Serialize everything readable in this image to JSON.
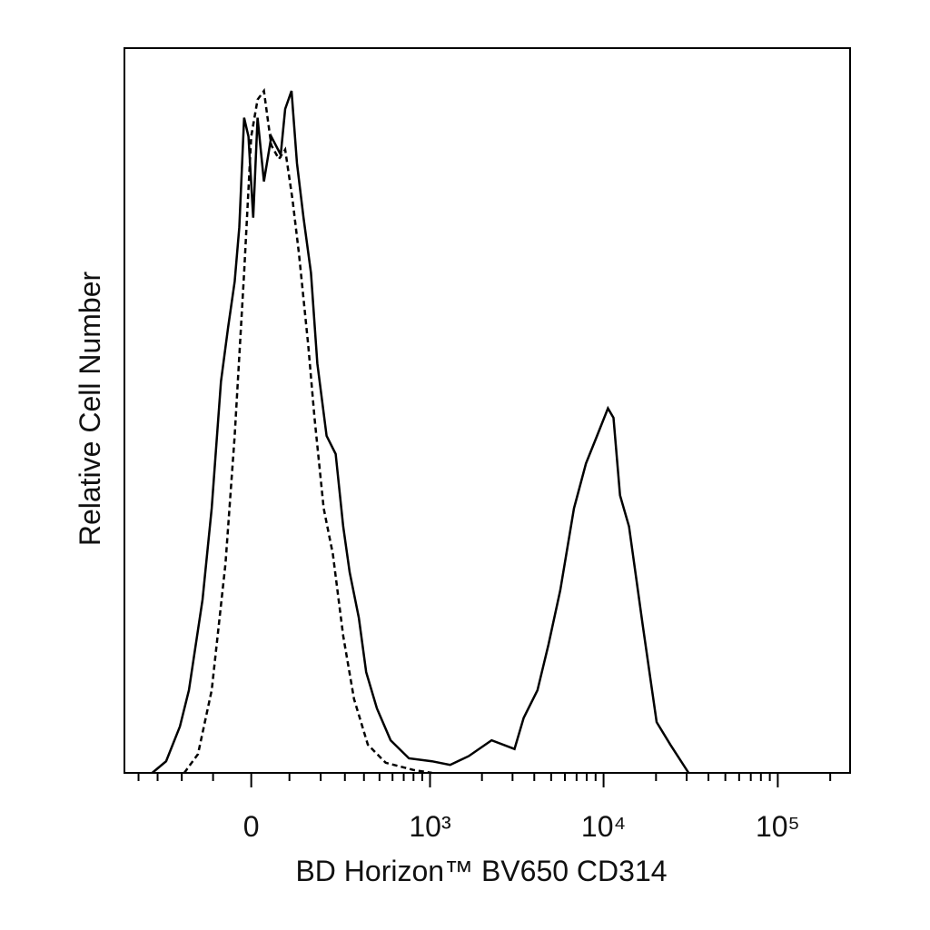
{
  "chart_data": {
    "type": "histogram-line",
    "x_label": "BD Horizon™ BV650 CD314",
    "y_label": "Relative Cell Number",
    "xscale": "biexponential",
    "xlim": [
      -490,
      260000
    ],
    "ylim": [
      0,
      100
    ],
    "xticks": [
      {
        "value": 0,
        "label": "0"
      },
      {
        "value": 1000,
        "label": "10³"
      },
      {
        "value": 10000,
        "label": "10⁴"
      },
      {
        "value": 100000,
        "label": "10⁵"
      }
    ],
    "xminorticks": [
      -400,
      -300,
      -200,
      -100,
      100,
      200,
      300,
      400,
      500,
      600,
      700,
      800,
      900,
      2000,
      3000,
      4000,
      5000,
      6000,
      7000,
      8000,
      9000,
      20000,
      30000,
      40000,
      50000,
      60000,
      70000,
      80000,
      90000,
      200000
    ],
    "series": [
      {
        "color": "#000000",
        "dash": false,
        "x": [
          -326,
          -262,
          -207,
          -175,
          -131,
          -104,
          -78,
          -59,
          -42,
          -30,
          -18,
          -7,
          5,
          16,
          32,
          51,
          76,
          88,
          106,
          122,
          142,
          166,
          188,
          222,
          259,
          292,
          323,
          371,
          413,
          482,
          584,
          752,
          1026,
          1309,
          1676,
          2272,
          3078,
          3477,
          4172,
          4826,
          5643,
          6764,
          7923,
          9177,
          10602,
          11400,
          12426,
          14003,
          16815,
          20159,
          24168,
          30780
        ],
        "values": [
          0,
          1.6,
          6.4,
          11.4,
          23.9,
          36.5,
          54,
          61.5,
          67.8,
          75.3,
          90.4,
          87.8,
          76.6,
          90.4,
          81.6,
          87.8,
          85.3,
          91.6,
          94.1,
          84.1,
          76.6,
          69,
          56.5,
          46.5,
          44,
          34,
          27.7,
          21.4,
          13.9,
          8.9,
          4.5,
          2,
          1.6,
          1.1,
          2.3,
          4.5,
          3.3,
          7.6,
          11.4,
          17.7,
          25.2,
          36.5,
          42.7,
          46.5,
          50.3,
          49,
          38.3,
          34,
          20.2,
          7,
          3.9,
          0
        ]
      },
      {
        "color": "#000000",
        "dash": true,
        "x": [
          -191,
          -145,
          -104,
          -66,
          -42,
          -18,
          0,
          16,
          32,
          51,
          71,
          88,
          109,
          128,
          157,
          178,
          211,
          247,
          292,
          345,
          423,
          545,
          800,
          1026
        ],
        "values": [
          0,
          2.6,
          11.4,
          28.9,
          46.5,
          69,
          87.8,
          92.9,
          94.1,
          86.6,
          84.7,
          86,
          79.1,
          71.6,
          59,
          49,
          36.5,
          30.2,
          18.9,
          10.2,
          3.9,
          1.4,
          0.4,
          0
        ]
      }
    ]
  }
}
